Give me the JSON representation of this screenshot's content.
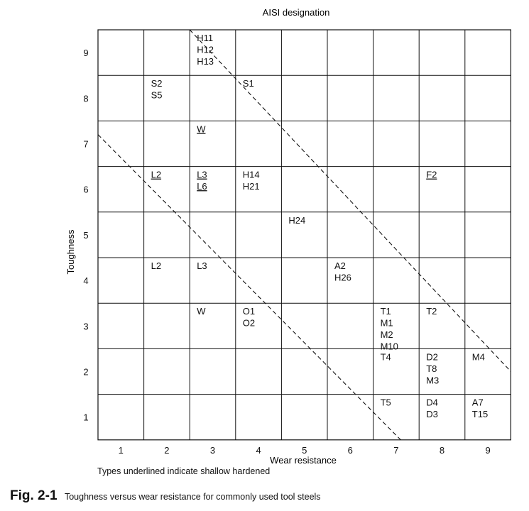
{
  "chart_data": {
    "type": "table",
    "title": "AISI designation",
    "xlabel": "Wear resistance",
    "ylabel": "Toughness",
    "x_ticks": [
      "1",
      "2",
      "3",
      "4",
      "5",
      "6",
      "7",
      "8",
      "9"
    ],
    "y_ticks": [
      "1",
      "2",
      "3",
      "4",
      "5",
      "6",
      "7",
      "8",
      "9"
    ],
    "xlim": [
      0.5,
      9.5
    ],
    "ylim": [
      0.5,
      9.5
    ],
    "grid": true,
    "cells": [
      {
        "x": 3,
        "y": 9,
        "labels": [
          "H11",
          "H12",
          "H13"
        ],
        "underlined": false
      },
      {
        "x": 2,
        "y": 8,
        "labels": [
          "S2",
          "S5"
        ],
        "underlined": false
      },
      {
        "x": 4,
        "y": 8,
        "labels": [
          "S1"
        ],
        "underlined": false
      },
      {
        "x": 3,
        "y": 7,
        "labels": [
          "W"
        ],
        "underlined": true
      },
      {
        "x": 2,
        "y": 6,
        "labels": [
          "L2"
        ],
        "underlined": true
      },
      {
        "x": 3,
        "y": 6,
        "labels": [
          "L3",
          "L6"
        ],
        "underlined": true
      },
      {
        "x": 4,
        "y": 6,
        "labels": [
          "H14",
          "H21"
        ],
        "underlined": false
      },
      {
        "x": 8,
        "y": 6,
        "labels": [
          "F2"
        ],
        "underlined": true
      },
      {
        "x": 5,
        "y": 5,
        "labels": [
          "H24"
        ],
        "underlined": false
      },
      {
        "x": 2,
        "y": 4,
        "labels": [
          "L2"
        ],
        "underlined": false
      },
      {
        "x": 3,
        "y": 4,
        "labels": [
          "L3"
        ],
        "underlined": false
      },
      {
        "x": 6,
        "y": 4,
        "labels": [
          "A2",
          "H26"
        ],
        "underlined": false
      },
      {
        "x": 3,
        "y": 3,
        "labels": [
          "W"
        ],
        "underlined": false
      },
      {
        "x": 4,
        "y": 3,
        "labels": [
          "O1",
          "O2"
        ],
        "underlined": false
      },
      {
        "x": 7,
        "y": 3,
        "labels": [
          "T1",
          "M1",
          "M2",
          "M10"
        ],
        "underlined": false
      },
      {
        "x": 8,
        "y": 3,
        "labels": [
          "T2"
        ],
        "underlined": false
      },
      {
        "x": 7,
        "y": 2,
        "labels": [
          "T4"
        ],
        "underlined": false
      },
      {
        "x": 8,
        "y": 2,
        "labels": [
          "D2",
          "T8",
          "M3"
        ],
        "underlined": false
      },
      {
        "x": 9,
        "y": 2,
        "labels": [
          "M4"
        ],
        "underlined": false
      },
      {
        "x": 7,
        "y": 1,
        "labels": [
          "T5"
        ],
        "underlined": false
      },
      {
        "x": 8,
        "y": 1,
        "labels": [
          "D4",
          "D3"
        ],
        "underlined": false
      },
      {
        "x": 9,
        "y": 1,
        "labels": [
          "A7",
          "T15"
        ],
        "underlined": false
      }
    ],
    "dashed_lines": [
      {
        "x1": 2.5,
        "y1": 9.5,
        "x2": 9.5,
        "y2": 2.0
      },
      {
        "x1": 0.5,
        "y1": 7.2,
        "x2": 7.1,
        "y2": 0.5
      }
    ],
    "note": "Types underlined indicate shallow hardened"
  },
  "caption": {
    "number": "Fig. 2-1",
    "text": "Toughness versus wear resistance for commonly used tool steels"
  },
  "colors": {
    "ink": "#111111",
    "background": "#ffffff"
  }
}
